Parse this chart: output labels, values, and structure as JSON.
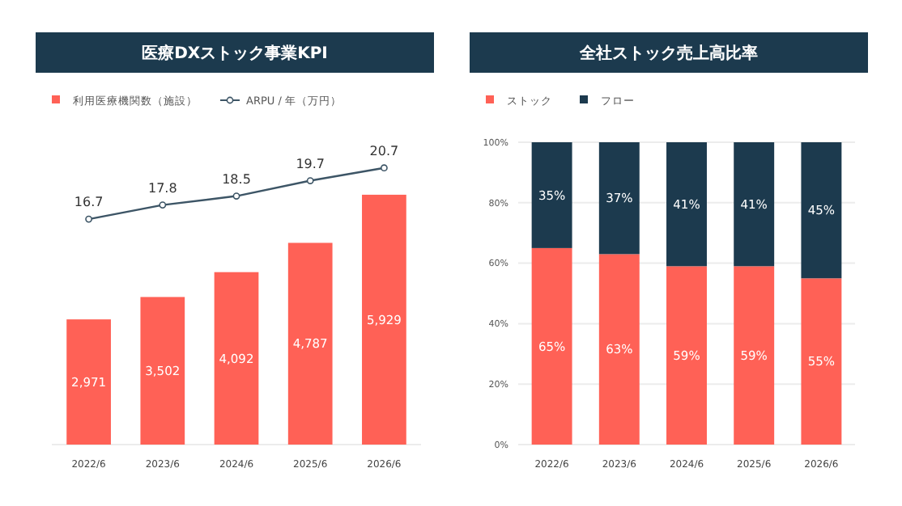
{
  "chart_data": [
    {
      "type": "bar",
      "title": "医療DXストック事業KPI",
      "categories": [
        "2022/6",
        "2023/6",
        "2024/6",
        "2025/6",
        "2026/6"
      ],
      "series": [
        {
          "name": "利用医療機関数（施設）",
          "color": "#ff6156",
          "values": [
            2971,
            3502,
            4092,
            4787,
            5929
          ],
          "value_labels": [
            "2,971",
            "3,502",
            "4,092",
            "4,787",
            "5,929"
          ]
        },
        {
          "name": "ARPU / 年（万円）",
          "type": "line",
          "axis": "y2",
          "color": "#3d5566",
          "values": [
            16.7,
            17.8,
            18.5,
            19.7,
            20.7
          ],
          "value_labels": [
            "16.7",
            "17.8",
            "18.5",
            "19.7",
            "20.7"
          ]
        }
      ],
      "tick_labels": "x",
      "marker": "circle",
      "legend": "top left",
      "grid": false
    },
    {
      "type": "bar",
      "title": "全社ストック売上高比率",
      "categories": [
        "2022/6",
        "2023/6",
        "2024/6",
        "2025/6",
        "2026/6"
      ],
      "stacked": true,
      "series": [
        {
          "name": "ストック",
          "color": "#ff6156",
          "values": [
            65,
            63,
            59,
            59,
            55
          ],
          "value_labels": [
            "65%",
            "63%",
            "59%",
            "59%",
            "55%"
          ]
        },
        {
          "name": "フロー",
          "color": "#1c3a4e",
          "values": [
            35,
            37,
            41,
            41,
            45
          ],
          "value_labels": [
            "35%",
            "37%",
            "41%",
            "41%",
            "45%"
          ]
        }
      ],
      "ylim": [
        0,
        100
      ],
      "yticks": [
        {
          "value": 0,
          "label": "0%"
        },
        {
          "value": 20,
          "label": "20%"
        },
        {
          "value": 40,
          "label": "40%"
        },
        {
          "value": 60,
          "label": "60%"
        },
        {
          "value": 80,
          "label": "80%"
        },
        {
          "value": 100,
          "label": "100%"
        }
      ],
      "grid": "y",
      "legend": "top left"
    }
  ]
}
